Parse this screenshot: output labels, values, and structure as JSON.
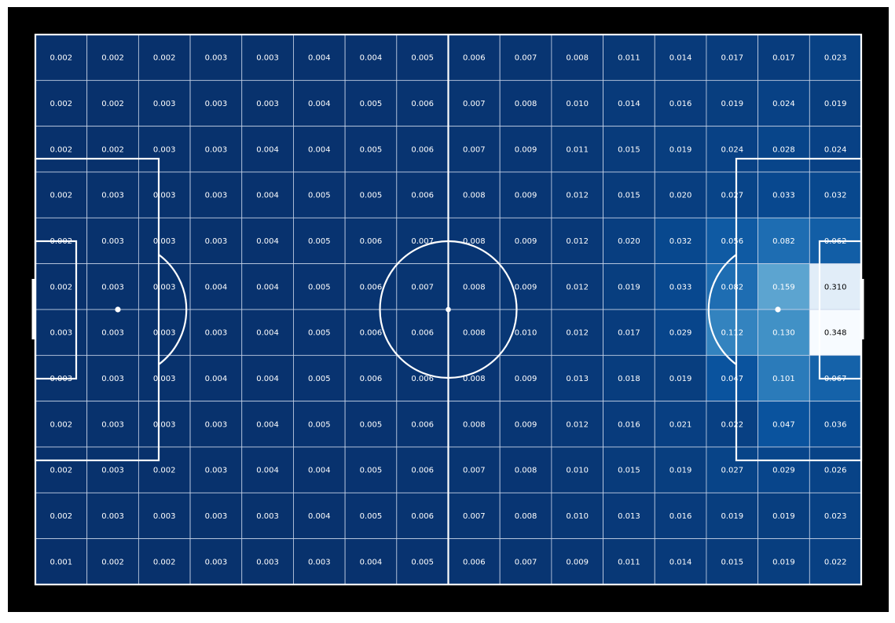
{
  "chart_data": {
    "type": "heatmap",
    "title": "",
    "xlabel": "",
    "ylabel": "",
    "grid": true,
    "colormap": "Blues",
    "vmin": 0.001,
    "vmax": 0.348,
    "value_format": "3 decimals",
    "n_cols": 16,
    "n_rows": 12,
    "values": [
      [
        0.002,
        0.002,
        0.002,
        0.003,
        0.003,
        0.004,
        0.004,
        0.005,
        0.006,
        0.007,
        0.008,
        0.011,
        0.014,
        0.017,
        0.017,
        0.023
      ],
      [
        0.002,
        0.002,
        0.003,
        0.003,
        0.003,
        0.004,
        0.005,
        0.006,
        0.007,
        0.008,
        0.01,
        0.014,
        0.016,
        0.019,
        0.024,
        0.019
      ],
      [
        0.002,
        0.002,
        0.003,
        0.003,
        0.004,
        0.004,
        0.005,
        0.006,
        0.007,
        0.009,
        0.011,
        0.015,
        0.019,
        0.024,
        0.028,
        0.024
      ],
      [
        0.002,
        0.003,
        0.003,
        0.003,
        0.004,
        0.005,
        0.005,
        0.006,
        0.008,
        0.009,
        0.012,
        0.015,
        0.02,
        0.027,
        0.033,
        0.032
      ],
      [
        0.002,
        0.003,
        0.003,
        0.003,
        0.004,
        0.005,
        0.006,
        0.007,
        0.008,
        0.009,
        0.012,
        0.02,
        0.032,
        0.056,
        0.082,
        0.062
      ],
      [
        0.002,
        0.003,
        0.003,
        0.004,
        0.004,
        0.005,
        0.006,
        0.007,
        0.008,
        0.009,
        0.012,
        0.019,
        0.033,
        0.082,
        0.159,
        0.31
      ],
      [
        0.003,
        0.003,
        0.003,
        0.003,
        0.004,
        0.005,
        0.006,
        0.006,
        0.008,
        0.01,
        0.012,
        0.017,
        0.029,
        0.112,
        0.13,
        0.348
      ],
      [
        0.003,
        0.003,
        0.003,
        0.004,
        0.004,
        0.005,
        0.006,
        0.006,
        0.008,
        0.009,
        0.013,
        0.018,
        0.019,
        0.047,
        0.101,
        0.067
      ],
      [
        0.002,
        0.003,
        0.003,
        0.003,
        0.004,
        0.005,
        0.005,
        0.006,
        0.008,
        0.009,
        0.012,
        0.016,
        0.021,
        0.022,
        0.047,
        0.036
      ],
      [
        0.002,
        0.003,
        0.002,
        0.003,
        0.004,
        0.004,
        0.005,
        0.006,
        0.007,
        0.008,
        0.01,
        0.015,
        0.019,
        0.027,
        0.029,
        0.026
      ],
      [
        0.002,
        0.003,
        0.003,
        0.003,
        0.003,
        0.004,
        0.005,
        0.006,
        0.007,
        0.008,
        0.01,
        0.013,
        0.016,
        0.019,
        0.019,
        0.023
      ],
      [
        0.001,
        0.002,
        0.002,
        0.003,
        0.003,
        0.003,
        0.004,
        0.005,
        0.006,
        0.007,
        0.009,
        0.011,
        0.014,
        0.015,
        0.019,
        0.022
      ]
    ]
  },
  "colors": {
    "background": "#000000",
    "pitch_lines": "#ffffff",
    "cell_grid": "#c8d4e8",
    "text_light": "#ffffff",
    "text_dark": "#000000",
    "colormap_stops": [
      "#08306b",
      "#08519c",
      "#2171b5",
      "#4292c6",
      "#6baed6",
      "#9ecae1",
      "#c6dbef",
      "#deebf7",
      "#f7fbff"
    ]
  }
}
